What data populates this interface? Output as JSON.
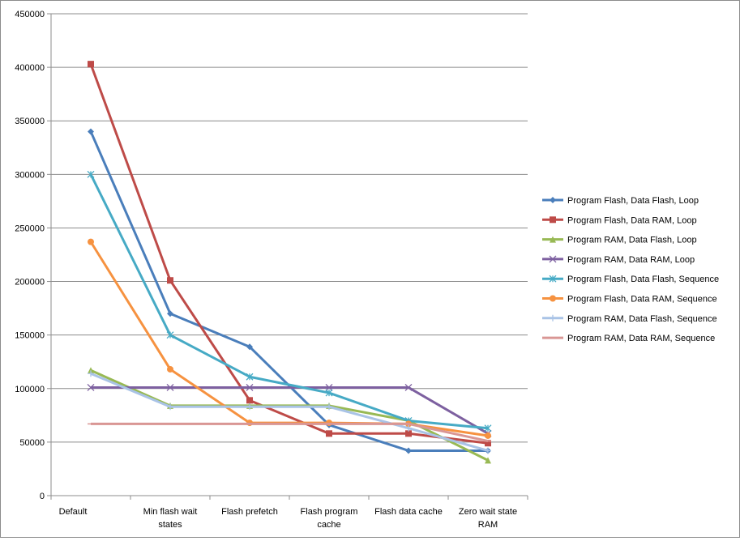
{
  "chart_data": {
    "type": "line",
    "title": "",
    "xlabel": "",
    "ylabel": "",
    "categories": [
      [
        "Default"
      ],
      [
        "Min flash wait",
        "states"
      ],
      [
        "Flash prefetch"
      ],
      [
        "Flash program",
        "cache"
      ],
      [
        "Flash data cache"
      ],
      [
        "Zero wait state",
        "RAM"
      ]
    ],
    "ylim": [
      0,
      450000
    ],
    "yticks": [
      0,
      50000,
      100000,
      150000,
      200000,
      250000,
      300000,
      350000,
      400000,
      450000
    ],
    "grid": true,
    "legend_position": "right",
    "series": [
      {
        "name": "Program Flash, Data Flash, Loop",
        "color": "#4a7ebb",
        "marker": "diamond",
        "values": [
          340000,
          170000,
          139000,
          66000,
          42000,
          42000
        ]
      },
      {
        "name": "Program Flash, Data RAM, Loop",
        "color": "#be4b48",
        "marker": "square",
        "values": [
          403000,
          201000,
          89000,
          58000,
          58000,
          49000
        ]
      },
      {
        "name": "Program RAM, Data Flash, Loop",
        "color": "#98b954",
        "marker": "triangle",
        "values": [
          117000,
          84000,
          84000,
          84000,
          70000,
          33000
        ]
      },
      {
        "name": "Program RAM, Data RAM, Loop",
        "color": "#7d60a0",
        "marker": "x",
        "values": [
          101000,
          101000,
          101000,
          101000,
          101000,
          58000
        ]
      },
      {
        "name": "Program Flash, Data Flash, Sequence",
        "color": "#46aac5",
        "marker": "star",
        "values": [
          300000,
          150000,
          111000,
          96000,
          70000,
          63000
        ]
      },
      {
        "name": "Program Flash, Data RAM, Sequence",
        "color": "#f69240",
        "marker": "circle",
        "values": [
          237000,
          118000,
          68000,
          68000,
          67000,
          56000
        ]
      },
      {
        "name": "Program RAM, Data Flash, Sequence",
        "color": "#a9c3e6",
        "marker": "plus",
        "values": [
          114000,
          83000,
          83000,
          83000,
          63000,
          42000
        ]
      },
      {
        "name": "Program RAM, Data RAM, Sequence",
        "color": "#d99694",
        "marker": "dash",
        "values": [
          67000,
          67000,
          67000,
          67000,
          67000,
          51000
        ]
      }
    ]
  }
}
